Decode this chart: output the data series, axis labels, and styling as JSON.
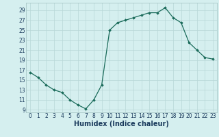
{
  "x": [
    0,
    1,
    2,
    3,
    4,
    5,
    6,
    7,
    8,
    9,
    10,
    11,
    12,
    13,
    14,
    15,
    16,
    17,
    18,
    19,
    20,
    21,
    22,
    23
  ],
  "y": [
    16.5,
    15.5,
    14,
    13,
    12.5,
    11,
    10,
    9.2,
    11,
    14,
    25,
    26.5,
    27,
    27.5,
    28,
    28.5,
    28.5,
    29.5,
    27.5,
    26.5,
    22.5,
    21,
    19.5,
    19.2
  ],
  "xlabel": "Humidex (Indice chaleur)",
  "xlim": [
    -0.5,
    23.5
  ],
  "ylim": [
    8.5,
    30.5
  ],
  "yticks": [
    9,
    11,
    13,
    15,
    17,
    19,
    21,
    23,
    25,
    27,
    29
  ],
  "xticks": [
    0,
    1,
    2,
    3,
    4,
    5,
    6,
    7,
    8,
    9,
    10,
    11,
    12,
    13,
    14,
    15,
    16,
    17,
    18,
    19,
    20,
    21,
    22,
    23
  ],
  "line_color": "#1a6b5a",
  "marker": "D",
  "marker_size": 1.8,
  "bg_color": "#d5efef",
  "grid_color": "#b8d8d8",
  "tick_color": "#1a3a5c",
  "tick_label_fontsize": 5.5,
  "xlabel_fontsize": 7.0,
  "spine_color": "#a0c0c0",
  "linewidth": 0.9
}
